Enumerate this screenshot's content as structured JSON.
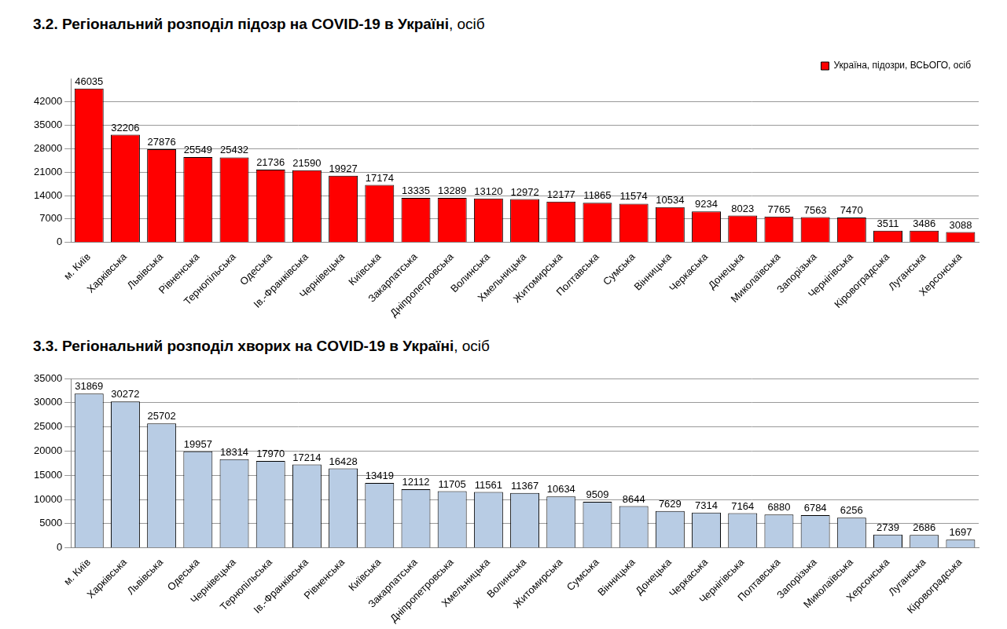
{
  "chart_data": [
    {
      "type": "bar",
      "title": "3.2. Регіональний розподіл підозр на COVID-19 в Україні, осіб",
      "categories": [
        "м. Київ",
        "Харківська",
        "Львівська",
        "Рівненська",
        "Тернопільська",
        "Одеська",
        "Ів.-Франківська",
        "Чернівецька",
        "Київська",
        "Закарпатська",
        "Дніпропетровська",
        "Волинська",
        "Хмельницька",
        "Житомирська",
        "Полтавська",
        "Сумська",
        "Вінницька",
        "Черкаська",
        "Донецька",
        "Миколаївська",
        "Запорізька",
        "Чернігівська",
        "Кіровоградська",
        "Луганська",
        "Херсонська"
      ],
      "series": [
        {
          "name": "Україна, підозри, ВСЬОГО, осіб",
          "color": "#ff0000",
          "values": [
            46035,
            32206,
            27876,
            25549,
            25432,
            21736,
            21590,
            19927,
            17174,
            13335,
            13289,
            13120,
            12972,
            12177,
            11865,
            11574,
            10534,
            9234,
            8023,
            7765,
            7563,
            7470,
            3511,
            3486,
            3088
          ]
        }
      ],
      "ylim": [
        0,
        49000
      ],
      "yticks": [
        0,
        7000,
        14000,
        21000,
        28000,
        35000,
        42000
      ],
      "grid": true,
      "legend": "upper right",
      "data_labels": true
    },
    {
      "type": "bar",
      "title": "3.3. Регіональний розподіл хворих на COVID-19 в Україні, осіб",
      "categories": [
        "м. Київ",
        "Харківська",
        "Львівська",
        "Одеська",
        "Чернівецька",
        "Тернопільська",
        "Ів.-Франківська",
        "Рівненська",
        "Київська",
        "Закарпатська",
        "Дніпропетровська",
        "Хмельницька",
        "Волинська",
        "Житомирська",
        "Сумська",
        "Вінницька",
        "Донецька",
        "Черкаська",
        "Чернігівська",
        "Полтавська",
        "Запорізька",
        "Миколаївська",
        "Херсонська",
        "Луганська",
        "Кіровоградська"
      ],
      "values": [
        31869,
        30272,
        25702,
        19957,
        18314,
        17970,
        17214,
        16428,
        13419,
        12112,
        11705,
        11561,
        11367,
        10634,
        9509,
        8644,
        7629,
        7314,
        7164,
        6880,
        6784,
        6256,
        2739,
        2686,
        1697
      ],
      "color": "#b8cce4",
      "ylim": [
        0,
        35000
      ],
      "yticks": [
        0,
        5000,
        10000,
        15000,
        20000,
        25000,
        30000,
        35000
      ],
      "grid": true,
      "data_labels": true
    }
  ]
}
